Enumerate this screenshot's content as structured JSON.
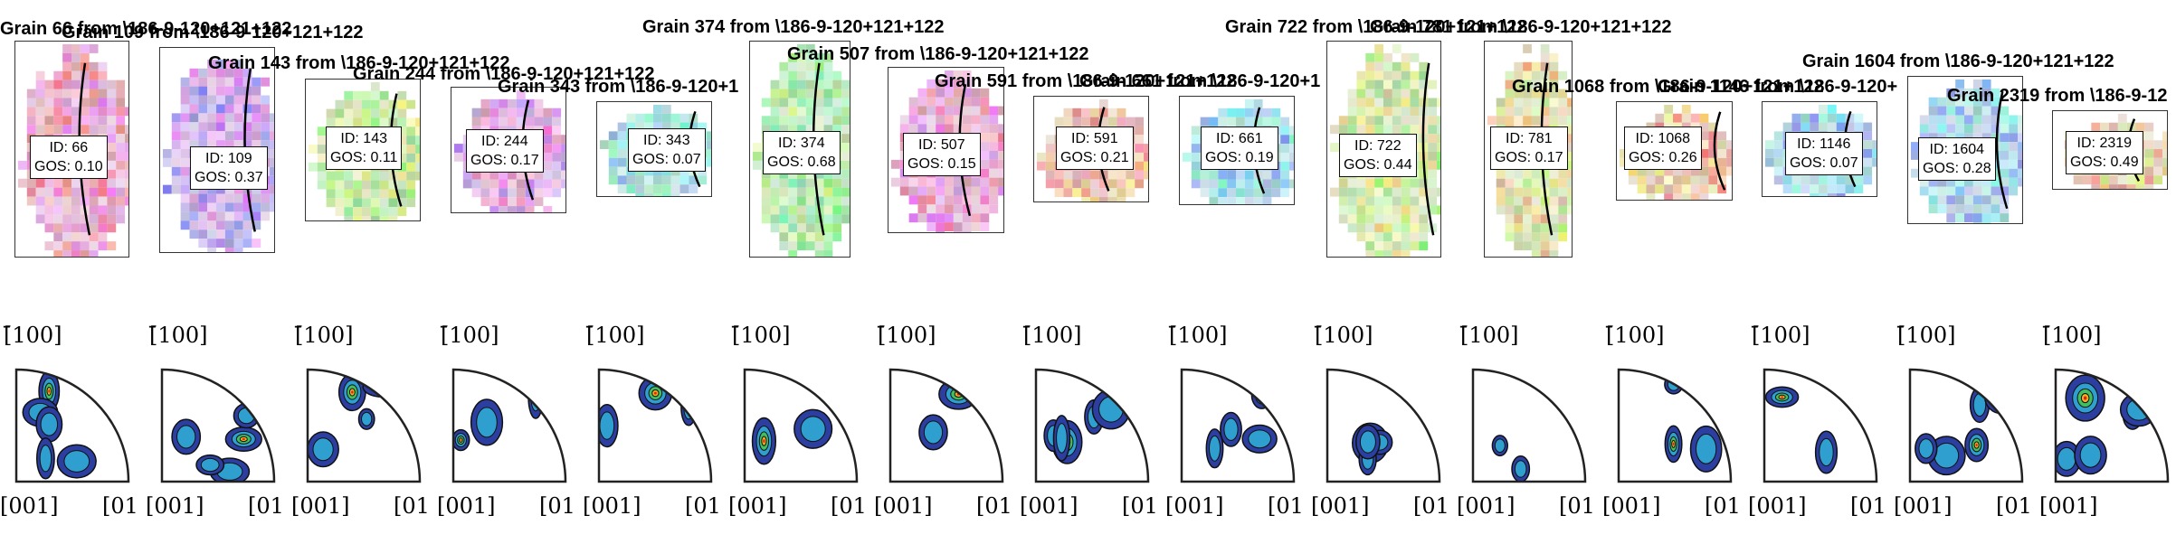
{
  "figure": {
    "grains": [
      {
        "title": "Grain 66 from \\186-9-120+121+122",
        "id_label": "ID: 66",
        "gos_label": "GOS: 0.10",
        "pf_top": "[̄100]",
        "pf_left": "[001]",
        "pf_right": "[01"
      },
      {
        "title": "Grain 109 from \\186-9-120+121+122",
        "id_label": "ID: 109",
        "gos_label": "GOS: 0.37",
        "pf_top": "[̄100]",
        "pf_left": "[001]",
        "pf_right": "[01"
      },
      {
        "title": "Grain 143 from \\186-9-120+121+122",
        "id_label": "ID: 143",
        "gos_label": "GOS: 0.11",
        "pf_top": "[̄100]",
        "pf_left": "[001]",
        "pf_right": "[01"
      },
      {
        "title": "Grain 244 from \\186-9-120+121+122",
        "id_label": "ID: 244",
        "gos_label": "GOS: 0.17",
        "pf_top": "[̄100]",
        "pf_left": "[001]",
        "pf_right": "[01"
      },
      {
        "title": "Grain 343 from \\186-9-120+1",
        "id_label": "ID: 343",
        "gos_label": "GOS: 0.07",
        "pf_top": "[̄100]",
        "pf_left": "[001]",
        "pf_right": "[01"
      },
      {
        "title": "Grain 374 from \\186-9-120+121+122",
        "id_label": "ID: 374",
        "gos_label": "GOS: 0.68",
        "pf_top": "[̄100]",
        "pf_left": "[001]",
        "pf_right": "[01"
      },
      {
        "title": "Grain 507 from \\186-9-120+121+122",
        "id_label": "ID: 507",
        "gos_label": "GOS: 0.15",
        "pf_top": "[̄100]",
        "pf_left": "[001]",
        "pf_right": "[01"
      },
      {
        "title": "Grain 591 from \\186-9-120+121+122",
        "id_label": "ID: 591",
        "gos_label": "GOS: 0.21",
        "pf_top": "[̄100]",
        "pf_left": "[001]",
        "pf_right": "[01"
      },
      {
        "title": "Grain 661 from \\186-9-120+1",
        "id_label": "ID: 661",
        "gos_label": "GOS: 0.19",
        "pf_top": "[̄100]",
        "pf_left": "[001]",
        "pf_right": "[01"
      },
      {
        "title": "Grain 722 from \\186-9-120+121+122",
        "id_label": "ID: 722",
        "gos_label": "GOS: 0.44",
        "pf_top": "[̄100]",
        "pf_left": "[001]",
        "pf_right": "[01"
      },
      {
        "title": "Grain 781 from \\186-9-120+121+122",
        "id_label": "ID: 781",
        "gos_label": "GOS: 0.17",
        "pf_top": "[̄100]",
        "pf_left": "[001]",
        "pf_right": "[01"
      },
      {
        "title": "Grain 1068 from \\186-9-120+121+122",
        "id_label": "ID: 1068",
        "gos_label": "GOS: 0.26",
        "pf_top": "[̄100]",
        "pf_left": "[001]",
        "pf_right": "[01"
      },
      {
        "title": "Grain 1146 from \\186-9-120+",
        "id_label": "ID: 1146",
        "gos_label": "GOS: 0.07",
        "pf_top": "[̄100]",
        "pf_left": "[001]",
        "pf_right": "[01"
      },
      {
        "title": "Grain 1604 from \\186-9-120+121+122",
        "id_label": "ID: 1604",
        "gos_label": "GOS: 0.28",
        "pf_top": "[̄100]",
        "pf_left": "[001]",
        "pf_right": "[01"
      },
      {
        "title": "Grain 2319 from \\186-9-12",
        "id_label": "ID: 2319",
        "gos_label": "GOS: 0.49",
        "pf_top": "[̄100]",
        "pf_left": "[001]",
        "pf_right": ""
      }
    ],
    "colors": {
      "boundary": "#000000",
      "frame": "#333333",
      "pf_outline": "#222222",
      "pf_low": "#3344aa",
      "pf_high": "#e02010"
    }
  }
}
